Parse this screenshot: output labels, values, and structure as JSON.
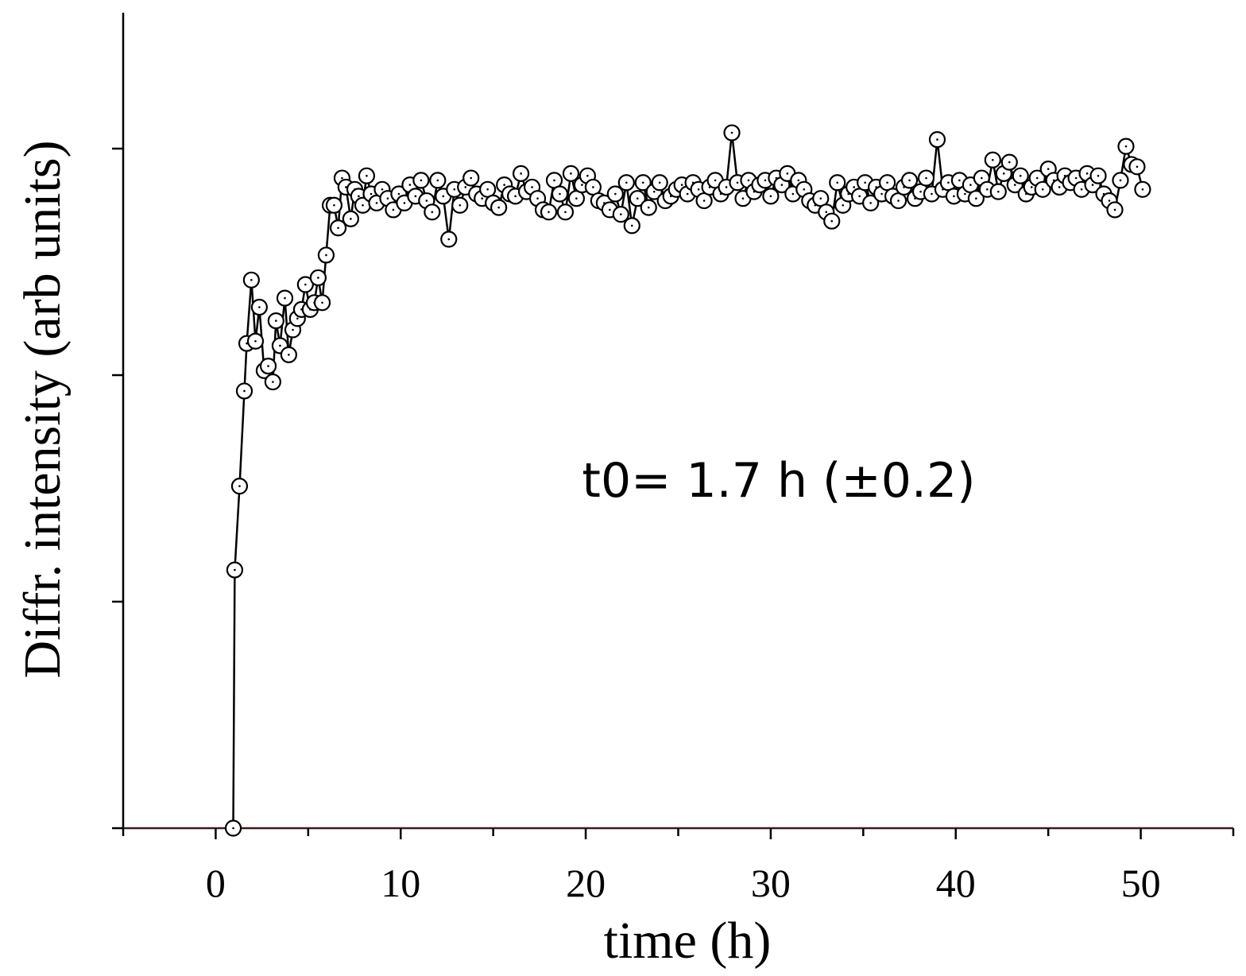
{
  "chart_data": {
    "type": "scatter-line",
    "xlabel": "time (h)",
    "ylabel": "Diffr. intensity (arb units)",
    "annotation": "t0= 1.7 h (±0.2)",
    "xlim": [
      -5,
      55
    ],
    "xticks": [
      0,
      10,
      20,
      30,
      40,
      50
    ],
    "xminor_ticks": [
      -5,
      5,
      15,
      25,
      35,
      45,
      55
    ],
    "ylim": [
      0,
      3.6
    ],
    "yticks": [
      0,
      1,
      2,
      3
    ],
    "ytick_labels": false,
    "color": "#000000",
    "x": [
      0.95,
      1.03,
      1.29,
      1.55,
      1.68,
      1.93,
      2.15,
      2.36,
      2.62,
      2.84,
      3.09,
      3.26,
      3.48,
      3.74,
      3.95,
      4.17,
      4.42,
      4.64,
      4.85,
      5.11,
      5.33,
      5.54,
      5.76,
      5.97,
      6.19,
      6.4,
      6.62,
      6.83,
      7.04,
      7.3,
      7.52,
      7.73,
      7.95,
      8.16,
      8.4,
      8.7,
      9.0,
      9.3,
      9.6,
      9.9,
      10.2,
      10.5,
      10.8,
      11.1,
      11.4,
      11.7,
      12.0,
      12.3,
      12.6,
      12.9,
      13.2,
      13.5,
      13.8,
      14.1,
      14.4,
      14.7,
      15.0,
      15.3,
      15.6,
      15.9,
      16.2,
      16.5,
      16.8,
      17.1,
      17.4,
      17.7,
      18.0,
      18.3,
      18.6,
      18.9,
      19.2,
      19.5,
      19.8,
      20.1,
      20.4,
      20.7,
      21.0,
      21.3,
      21.6,
      21.9,
      22.2,
      22.5,
      22.8,
      23.1,
      23.4,
      23.7,
      24.0,
      24.3,
      24.6,
      24.9,
      25.2,
      25.5,
      25.8,
      26.1,
      26.4,
      26.7,
      27.0,
      27.3,
      27.6,
      27.9,
      28.2,
      28.5,
      28.8,
      29.1,
      29.4,
      29.7,
      30.0,
      30.3,
      30.6,
      30.9,
      31.2,
      31.5,
      31.8,
      32.1,
      32.4,
      32.7,
      33.0,
      33.3,
      33.6,
      33.9,
      34.2,
      34.5,
      34.8,
      35.1,
      35.4,
      35.7,
      36.0,
      36.3,
      36.6,
      36.9,
      37.2,
      37.5,
      37.8,
      38.1,
      38.4,
      38.7,
      39.0,
      39.3,
      39.6,
      39.9,
      40.2,
      40.5,
      40.8,
      41.1,
      41.4,
      41.7,
      42.0,
      42.3,
      42.6,
      42.9,
      43.2,
      43.5,
      43.8,
      44.1,
      44.4,
      44.7,
      45.0,
      45.3,
      45.6,
      45.9,
      46.2,
      46.5,
      46.8,
      47.1,
      47.4,
      47.7,
      48.0,
      48.3,
      48.6,
      48.9,
      49.2,
      49.5,
      49.8,
      50.1
    ],
    "values": [
      0,
      1.14,
      1.51,
      1.93,
      2.14,
      2.42,
      2.15,
      2.3,
      2.02,
      2.04,
      1.97,
      2.24,
      2.13,
      2.34,
      2.09,
      2.2,
      2.25,
      2.29,
      2.4,
      2.29,
      2.32,
      2.43,
      2.32,
      2.53,
      2.75,
      2.75,
      2.65,
      2.87,
      2.83,
      2.69,
      2.82,
      2.79,
      2.75,
      2.88,
      2.8,
      2.76,
      2.82,
      2.78,
      2.73,
      2.8,
      2.76,
      2.84,
      2.79,
      2.86,
      2.77,
      2.72,
      2.86,
      2.79,
      2.6,
      2.82,
      2.75,
      2.83,
      2.87,
      2.8,
      2.78,
      2.82,
      2.76,
      2.74,
      2.84,
      2.8,
      2.79,
      2.89,
      2.81,
      2.83,
      2.78,
      2.73,
      2.72,
      2.86,
      2.8,
      2.72,
      2.89,
      2.78,
      2.84,
      2.88,
      2.83,
      2.77,
      2.76,
      2.73,
      2.8,
      2.71,
      2.85,
      2.66,
      2.78,
      2.85,
      2.74,
      2.81,
      2.85,
      2.77,
      2.79,
      2.82,
      2.84,
      2.8,
      2.85,
      2.82,
      2.77,
      2.83,
      2.86,
      2.8,
      2.83,
      3.07,
      2.85,
      2.78,
      2.86,
      2.81,
      2.84,
      2.86,
      2.79,
      2.87,
      2.84,
      2.89,
      2.8,
      2.86,
      2.82,
      2.77,
      2.75,
      2.78,
      2.72,
      2.68,
      2.85,
      2.75,
      2.8,
      2.83,
      2.79,
      2.85,
      2.76,
      2.83,
      2.8,
      2.85,
      2.79,
      2.77,
      2.83,
      2.86,
      2.78,
      2.81,
      2.87,
      2.8,
      3.04,
      2.82,
      2.85,
      2.79,
      2.86,
      2.8,
      2.84,
      2.78,
      2.87,
      2.82,
      2.95,
      2.81,
      2.89,
      2.94,
      2.84,
      2.88,
      2.8,
      2.83,
      2.87,
      2.82,
      2.91,
      2.86,
      2.83,
      2.88,
      2.85,
      2.87,
      2.82,
      2.89,
      2.84,
      2.88,
      2.8,
      2.77,
      2.73,
      2.86,
      3.01,
      2.93,
      2.92,
      2.82
    ]
  }
}
